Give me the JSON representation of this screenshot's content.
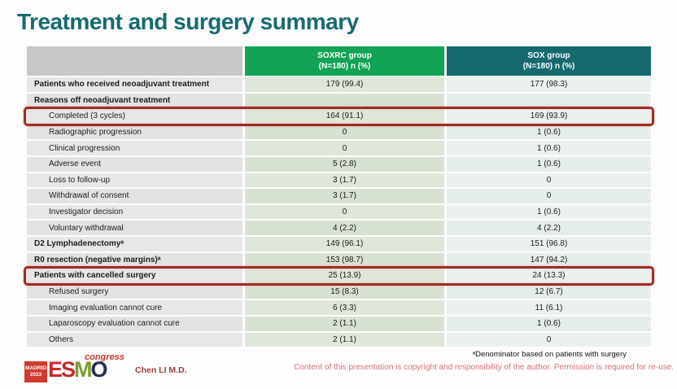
{
  "slide": {
    "title": "Treatment and surgery summary"
  },
  "table": {
    "columns": [
      {
        "name": "SOXRC group",
        "sub": "(N=180)  n (%)"
      },
      {
        "name": "SOX group",
        "sub": "(N=180)  n (%)"
      }
    ],
    "rows": [
      {
        "label": "Patients who received neoadjuvant treatment",
        "soxrc": "179 (99.4)",
        "sox": "177 (98.3)"
      },
      {
        "label": "Reasons off neoadjuvant treatment",
        "soxrc": "",
        "sox": ""
      },
      {
        "label": "Completed (3 cycles)",
        "soxrc": "164 (91.1)",
        "sox": "169 (93.9)"
      },
      {
        "label": "Radiographic progression",
        "soxrc": "0",
        "sox": "1 (0.6)"
      },
      {
        "label": "Clinical progression",
        "soxrc": "0",
        "sox": "1 (0.6)"
      },
      {
        "label": "Adverse event",
        "soxrc": "5 (2.8)",
        "sox": "1 (0.6)"
      },
      {
        "label": "Loss to follow-up",
        "soxrc": "3 (1.7)",
        "sox": "0"
      },
      {
        "label": "Withdrawal of consent",
        "soxrc": "3 (1.7)",
        "sox": "0"
      },
      {
        "label": "Investigator decision",
        "soxrc": "0",
        "sox": "1 (0.6)"
      },
      {
        "label": "Voluntary withdrawal",
        "soxrc": "4 (2.2)",
        "sox": "4 (2.2)"
      },
      {
        "label": "D2 Lymphadenectomyᵃ",
        "soxrc": "149 (96.1)",
        "sox": "151 (96.8)"
      },
      {
        "label": "R0 resection (negative margins)ᵃ",
        "soxrc": "153 (98.7)",
        "sox": "147 (94.2)"
      },
      {
        "label": "Patients with cancelled surgery",
        "soxrc": "25 (13.9)",
        "sox": "24 (13.3)"
      },
      {
        "label": "Refused surgery",
        "soxrc": "15 (8.3)",
        "sox": "12 (6.7)"
      },
      {
        "label": "Imaging evaluation cannot cure",
        "soxrc": "6 (3.3)",
        "sox": "11 (6.1)"
      },
      {
        "label": "Laparoscopy evaluation cannot cure",
        "soxrc": "2 (1.1)",
        "sox": "1 (0.6)"
      },
      {
        "label": "Others",
        "soxrc": "2 (1.1)",
        "sox": "0"
      }
    ]
  },
  "footer": {
    "logo": {
      "badge_line1": "MADRID",
      "badge_line2": "2023",
      "letters": [
        "E",
        "S",
        "M",
        "O"
      ],
      "congress": "congress"
    },
    "presenter": "Chen LI M.D.",
    "footnote": "ᵃDenominator based on patients with surgery",
    "copyright": "Content of this presentation is copyright and responsibility of the author. Permission is required for re-use."
  },
  "colors": {
    "title_teal": "#156a6e",
    "header_green": "#12a355",
    "header_teal": "#15696f",
    "highlight_red": "#9e2c25",
    "logo_red": "#ce3a2d",
    "copyright_pink": "#d4737b"
  }
}
